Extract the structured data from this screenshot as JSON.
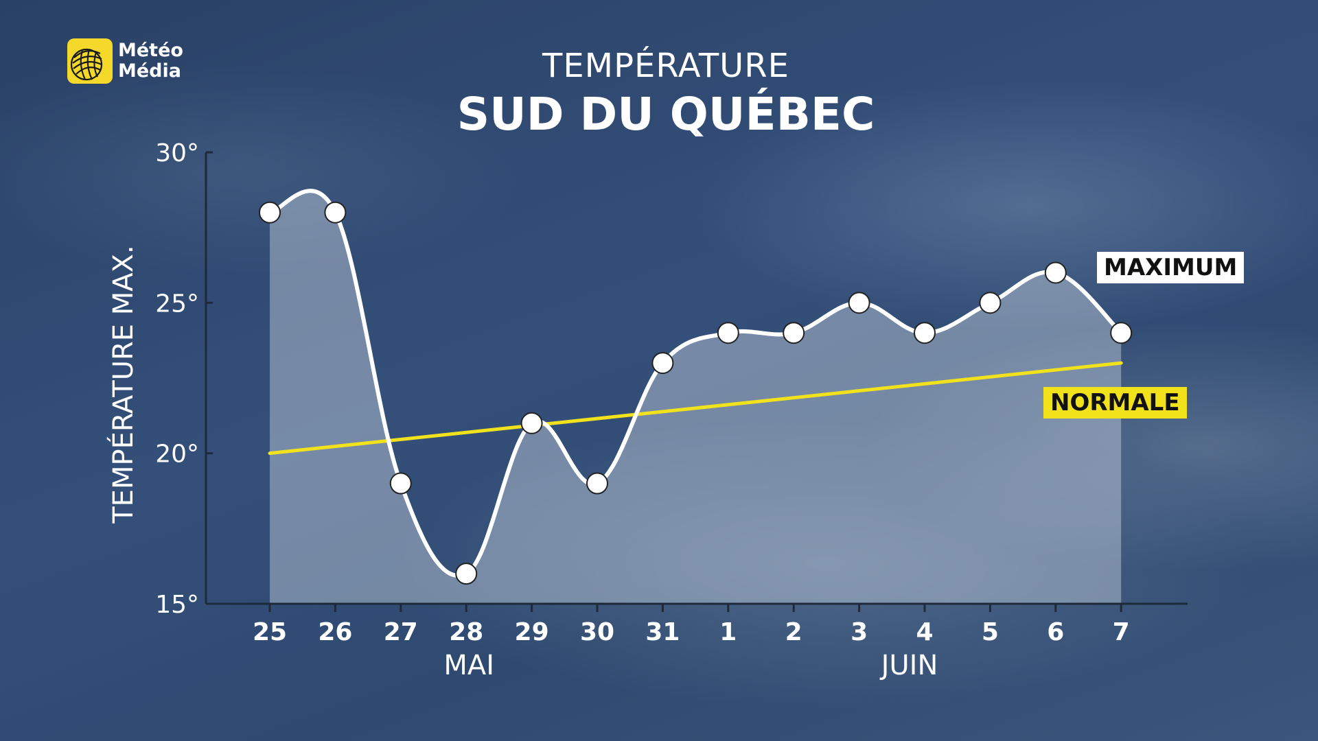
{
  "logo": {
    "line1": "Météo",
    "line2": "Média"
  },
  "title": {
    "top": "TEMPÉRATURE",
    "main": "SUD DU QUÉBEC"
  },
  "colors": {
    "maximum_line": "#ffffff",
    "normale_line": "#f2e21c",
    "area_fill": "rgba(200,210,225,0.45)",
    "logo_bg": "#f5d92a"
  },
  "chart_data": {
    "type": "line",
    "ylabel": "TEMPÉRATURE MAX.",
    "xlabel": "",
    "ylim": [
      15,
      30
    ],
    "yticks": [
      {
        "value": 15,
        "label": "15°"
      },
      {
        "value": 20,
        "label": "20°"
      },
      {
        "value": 25,
        "label": "25°"
      },
      {
        "value": 30,
        "label": "30°"
      }
    ],
    "categories": [
      "25",
      "26",
      "27",
      "28",
      "29",
      "30",
      "31",
      "1",
      "2",
      "3",
      "4",
      "5",
      "6",
      "7"
    ],
    "month_labels": [
      {
        "label": "MAI",
        "under_category": "28"
      },
      {
        "label": "JUIN",
        "under_category": "4"
      }
    ],
    "series": [
      {
        "name": "MAXIMUM",
        "values": [
          28,
          28,
          19,
          16,
          21,
          19,
          23,
          24,
          24,
          25,
          24,
          25,
          26,
          24
        ]
      },
      {
        "name": "NORMALE",
        "values": [
          20.0,
          20.23,
          20.46,
          20.69,
          20.92,
          21.15,
          21.38,
          21.62,
          21.85,
          22.08,
          22.31,
          22.54,
          22.77,
          23.0
        ]
      }
    ],
    "grid": false
  }
}
